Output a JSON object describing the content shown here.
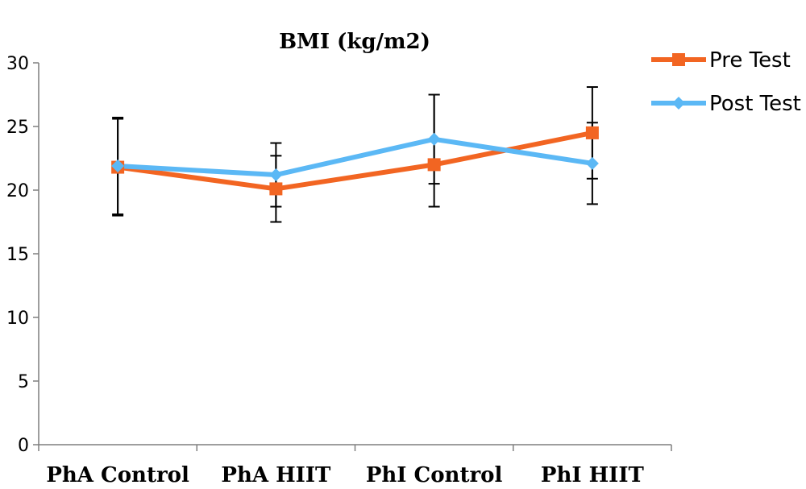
{
  "chart_data": {
    "type": "line",
    "title": "BMI (kg/m2)",
    "categories": [
      "PhA Control",
      "PhA HIIT",
      "PhI Control",
      "PhI HIIT"
    ],
    "ylim": [
      0,
      30
    ],
    "yticks": [
      0,
      5,
      10,
      15,
      20,
      25,
      30
    ],
    "grid": false,
    "legend_position": "top-right",
    "series": [
      {
        "name": "Pre Test",
        "values": [
          21.8,
          20.1,
          22.0,
          24.5
        ],
        "error_minus": [
          3.8,
          2.6,
          3.3,
          3.6
        ],
        "error_plus": [
          3.8,
          2.6,
          5.5,
          3.6
        ],
        "color": "#f26522",
        "marker": "square"
      },
      {
        "name": "Post Test",
        "values": [
          21.9,
          21.2,
          24.0,
          22.1
        ],
        "error_minus": [
          3.8,
          2.5,
          3.5,
          3.2
        ],
        "error_plus": [
          3.8,
          2.5,
          3.5,
          3.2
        ],
        "color": "#5bb8f5",
        "marker": "diamond"
      }
    ]
  }
}
